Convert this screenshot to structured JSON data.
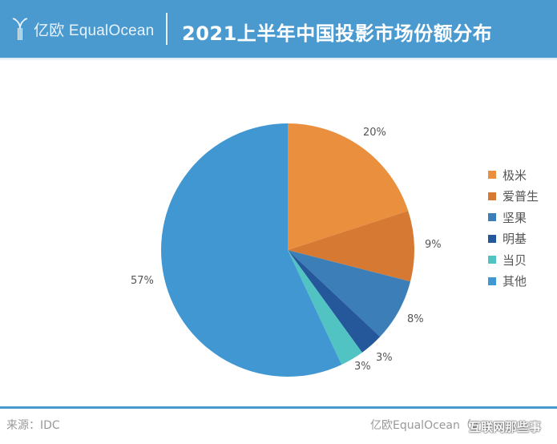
{
  "header": {
    "logo_text": "亿欧 EqualOcean",
    "title": "2021上半年中国投影市场份额分布"
  },
  "colors": {
    "header_bg": "#4a9ad0"
  },
  "legend": [
    {
      "label": "极米",
      "color": "#e98f3d"
    },
    {
      "label": "爱普生",
      "color": "#d67a33"
    },
    {
      "label": "坚果",
      "color": "#3c7fb8"
    },
    {
      "label": "明基",
      "color": "#25589a"
    },
    {
      "label": "当贝",
      "color": "#52c3c3"
    },
    {
      "label": "其他",
      "color": "#4097d1"
    }
  ],
  "labels": [
    "20%",
    "9%",
    "8%",
    "3%",
    "3%",
    "57%"
  ],
  "footer": {
    "source": "来源：IDC",
    "credit": "亿欧EqualOcean（v",
    "watermark": "互联网那些事"
  },
  "chart_data": {
    "type": "pie",
    "title": "2021上半年中国投影市场份额分布",
    "categories": [
      "极米",
      "爱普生",
      "坚果",
      "明基",
      "当贝",
      "其他"
    ],
    "values": [
      20,
      9,
      8,
      3,
      3,
      57
    ],
    "unit": "%",
    "colors": [
      "#e98f3d",
      "#d67a33",
      "#3c7fb8",
      "#25589a",
      "#52c3c3",
      "#4097d1"
    ],
    "start_angle": "12 o'clock, clockwise",
    "legend_position": "right",
    "source": "IDC"
  }
}
